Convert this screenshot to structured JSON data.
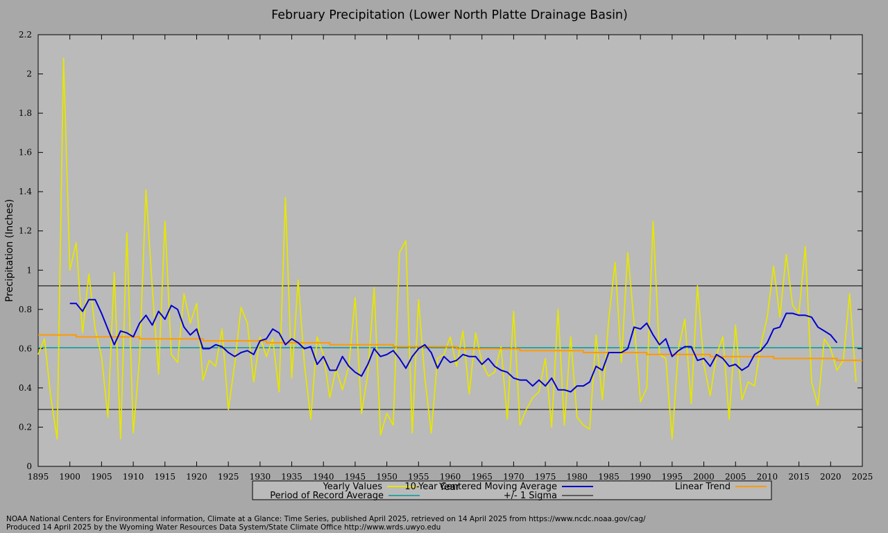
{
  "chart_data": {
    "type": "line",
    "title": "February Precipitation (Lower North Platte Drainage Basin)",
    "xlabel": "Year",
    "ylabel": "Precipitation (Inches)",
    "xlim": [
      1895,
      2025
    ],
    "ylim": [
      0,
      2.2
    ],
    "x_ticks": [
      1895,
      1900,
      1905,
      1910,
      1915,
      1920,
      1925,
      1930,
      1935,
      1940,
      1945,
      1950,
      1955,
      1960,
      1965,
      1970,
      1975,
      1980,
      1985,
      1990,
      1995,
      2000,
      2005,
      2010,
      2015,
      2020,
      2025
    ],
    "y_ticks": [
      0,
      0.2,
      0.4,
      0.6,
      0.8,
      1,
      1.2,
      1.4,
      1.6,
      1.8,
      2,
      2.2
    ],
    "y_tick_labels": [
      "0",
      "0.2",
      "0.4",
      "0.6",
      "0.8",
      "1",
      "1.2",
      "1.4",
      "1.6",
      "1.8",
      "2",
      "2.2"
    ],
    "grid": false,
    "legend_position": "bottom",
    "series": [
      {
        "name": "Yearly Values",
        "color": "#e6e600",
        "start_year": 1895,
        "values": [
          0.57,
          0.65,
          0.35,
          0.14,
          2.08,
          1.0,
          1.14,
          0.68,
          0.98,
          0.7,
          0.56,
          0.25,
          0.99,
          0.14,
          1.19,
          0.17,
          0.55,
          1.41,
          0.91,
          0.47,
          1.25,
          0.57,
          0.53,
          0.88,
          0.73,
          0.83,
          0.44,
          0.54,
          0.51,
          0.7,
          0.29,
          0.52,
          0.81,
          0.73,
          0.43,
          0.66,
          0.56,
          0.65,
          0.38,
          1.37,
          0.45,
          0.95,
          0.52,
          0.24,
          0.66,
          0.57,
          0.35,
          0.5,
          0.39,
          0.51,
          0.86,
          0.27,
          0.47,
          0.91,
          0.16,
          0.27,
          0.21,
          1.09,
          1.15,
          0.17,
          0.85,
          0.45,
          0.17,
          0.55,
          0.57,
          0.66,
          0.51,
          0.69,
          0.37,
          0.68,
          0.53,
          0.46,
          0.48,
          0.61,
          0.24,
          0.79,
          0.21,
          0.29,
          0.35,
          0.38,
          0.55,
          0.2,
          0.8,
          0.21,
          0.66,
          0.25,
          0.21,
          0.19,
          0.67,
          0.34,
          0.75,
          1.04,
          0.53,
          1.09,
          0.73,
          0.33,
          0.4,
          1.25,
          0.57,
          0.55,
          0.14,
          0.6,
          0.75,
          0.32,
          0.92,
          0.52,
          0.36,
          0.57,
          0.66,
          0.24,
          0.72,
          0.34,
          0.43,
          0.41,
          0.62,
          0.76,
          1.02,
          0.76,
          1.08,
          0.82,
          0.78,
          1.12,
          0.43,
          0.31,
          0.65,
          0.6,
          0.49,
          0.54,
          0.88,
          0.43
        ]
      },
      {
        "name": "10-Year Centered Moving Average",
        "color": "#0000cc",
        "start_year": 1900,
        "values": [
          0.83,
          0.83,
          0.79,
          0.85,
          0.85,
          0.78,
          0.7,
          0.62,
          0.69,
          0.68,
          0.66,
          0.73,
          0.77,
          0.72,
          0.79,
          0.75,
          0.82,
          0.8,
          0.71,
          0.67,
          0.7,
          0.6,
          0.6,
          0.62,
          0.61,
          0.58,
          0.56,
          0.58,
          0.59,
          0.57,
          0.64,
          0.65,
          0.7,
          0.68,
          0.62,
          0.65,
          0.63,
          0.6,
          0.61,
          0.52,
          0.56,
          0.49,
          0.49,
          0.56,
          0.51,
          0.48,
          0.46,
          0.52,
          0.6,
          0.56,
          0.57,
          0.59,
          0.55,
          0.5,
          0.56,
          0.6,
          0.62,
          0.58,
          0.5,
          0.56,
          0.53,
          0.54,
          0.57,
          0.56,
          0.56,
          0.52,
          0.55,
          0.51,
          0.49,
          0.48,
          0.45,
          0.44,
          0.44,
          0.41,
          0.44,
          0.41,
          0.45,
          0.39,
          0.39,
          0.38,
          0.41,
          0.41,
          0.43,
          0.51,
          0.49,
          0.58,
          0.58,
          0.58,
          0.6,
          0.71,
          0.7,
          0.73,
          0.67,
          0.62,
          0.65,
          0.56,
          0.59,
          0.61,
          0.61,
          0.54,
          0.55,
          0.51,
          0.57,
          0.55,
          0.51,
          0.52,
          0.49,
          0.51,
          0.57,
          0.59,
          0.63,
          0.7,
          0.71,
          0.78,
          0.78,
          0.77,
          0.77,
          0.76,
          0.71,
          0.69,
          0.67,
          0.63
        ]
      },
      {
        "name": "Linear Trend",
        "color": "#ff9900",
        "x": [
          1895,
          2025
        ],
        "values": [
          0.67,
          0.54
        ]
      },
      {
        "name": "Period of Record Average",
        "color": "#009999",
        "value": 0.605
      },
      {
        "name": "+/- 1 Sigma",
        "color": "#000000",
        "values": [
          0.92,
          0.29
        ]
      }
    ]
  },
  "footer": {
    "line1": "NOAA National Centers for Environmental information, Climate at a Glance: Time Series, published April 2025, retrieved on 14 April 2025 from https://www.ncdc.noaa.gov/cag/",
    "line2": "Produced 14 April 2025 by the Wyoming Water Resources Data System/State Climate Office http://www.wrds.uwyo.edu"
  }
}
